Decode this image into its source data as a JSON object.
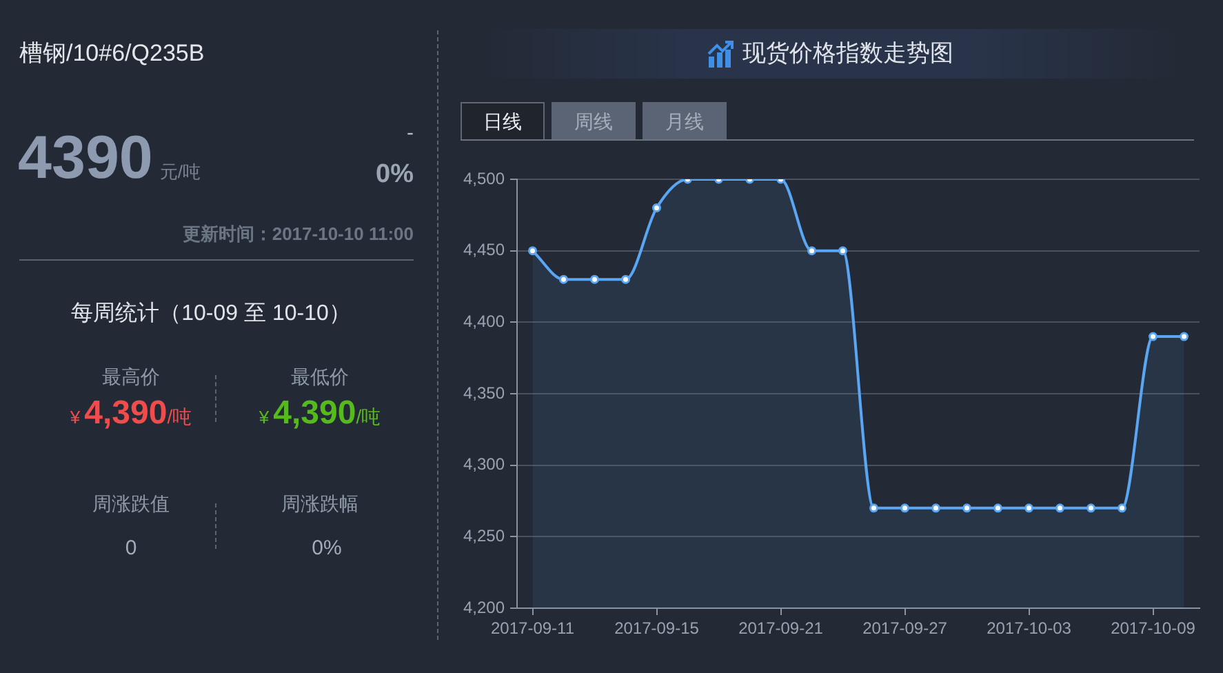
{
  "chart_data": [
    {
      "type": "other",
      "title": "槽钢/10#6/Q235B",
      "annotations": [
        "4390",
        "元/吨",
        "-",
        "0%",
        "更新时间：2017-10-10 11:00",
        "每周统计（10-09 至 10-10）",
        "最高价",
        "¥",
        "4,390",
        "/吨",
        "最低价",
        "¥",
        "4,390",
        "/吨",
        "周涨跌值",
        "0",
        "周涨跌幅",
        "0%"
      ]
    },
    {
      "type": "area",
      "title": "现货价格指数走势图",
      "annotations": [
        "日线",
        "周线",
        "月线"
      ],
      "categories": [
        "2017-09-11",
        null,
        null,
        null,
        "2017-09-15",
        null,
        null,
        null,
        "2017-09-21",
        null,
        null,
        null,
        "2017-09-27",
        null,
        null,
        null,
        "2017-10-03",
        null,
        null,
        null,
        "2017-10-09",
        null
      ],
      "values": [
        4450,
        4430,
        4430,
        4430,
        4480,
        4500,
        4500,
        4500,
        4500,
        4450,
        4450,
        4270,
        4270,
        4270,
        4270,
        4270,
        4270,
        4270,
        4270,
        4270,
        4390,
        4390
      ],
      "color": "#5aa6f2",
      "ylim": [
        4200,
        4500
      ],
      "yticks": [
        {
          "value": 4200,
          "label": "4,200"
        },
        {
          "value": 4250,
          "label": "4,250"
        },
        {
          "value": 4300,
          "label": "4,300"
        },
        {
          "value": 4350,
          "label": "4,350"
        },
        {
          "value": 4400,
          "label": "4,400"
        },
        {
          "value": 4450,
          "label": "4,450"
        },
        {
          "value": 4500,
          "label": "4,500"
        }
      ],
      "grid": "y",
      "marker": "circle"
    }
  ]
}
